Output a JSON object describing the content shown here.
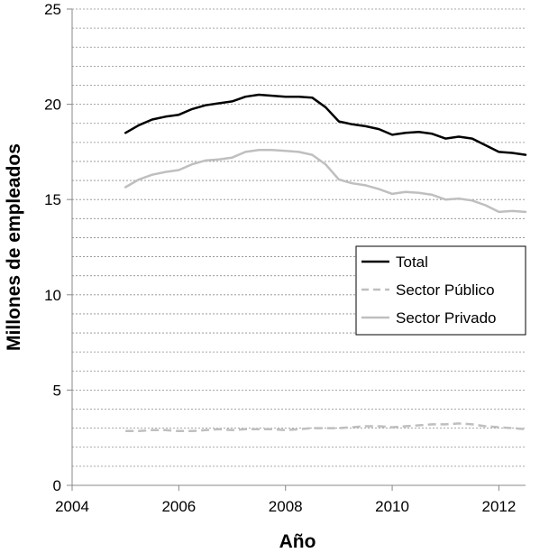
{
  "chart_data": {
    "type": "line",
    "xlabel": "Año",
    "ylabel": "Millones de empleados",
    "xlim": [
      2004,
      2012.5
    ],
    "ylim": [
      0,
      25
    ],
    "xticks": [
      2004,
      2006,
      2008,
      2010,
      2012
    ],
    "yticks": [
      0,
      5,
      10,
      15,
      20,
      25
    ],
    "xtick_labels": [
      "2004",
      "2006",
      "2008",
      "2010",
      "2012"
    ],
    "ytick_labels": [
      "0",
      "5",
      "10",
      "15",
      "20",
      "25"
    ],
    "grid": "horizontal minor dashed",
    "legend_position": "right",
    "x": [
      2005.0,
      2005.25,
      2005.5,
      2005.75,
      2006.0,
      2006.25,
      2006.5,
      2006.75,
      2007.0,
      2007.25,
      2007.5,
      2007.75,
      2008.0,
      2008.25,
      2008.5,
      2008.75,
      2009.0,
      2009.25,
      2009.5,
      2009.75,
      2010.0,
      2010.25,
      2010.5,
      2010.75,
      2011.0,
      2011.25,
      2011.5,
      2011.75,
      2012.0,
      2012.25,
      2012.5
    ],
    "series": [
      {
        "name": "Total",
        "color": "#000000",
        "style": "solid",
        "values": [
          18.5,
          18.9,
          19.2,
          19.35,
          19.45,
          19.75,
          19.95,
          20.05,
          20.15,
          20.4,
          20.5,
          20.45,
          20.4,
          20.4,
          20.35,
          19.85,
          19.1,
          18.95,
          18.85,
          18.7,
          18.4,
          18.5,
          18.55,
          18.45,
          18.2,
          18.3,
          18.2,
          17.85,
          17.5,
          17.45,
          17.35
        ]
      },
      {
        "name": "Sector Público",
        "color": "#bfbfbf",
        "style": "dashed",
        "values": [
          2.85,
          2.85,
          2.9,
          2.9,
          2.85,
          2.85,
          2.9,
          2.95,
          2.9,
          2.95,
          2.95,
          2.95,
          2.9,
          2.95,
          3.0,
          3.0,
          3.0,
          3.05,
          3.1,
          3.1,
          3.05,
          3.1,
          3.15,
          3.2,
          3.2,
          3.25,
          3.2,
          3.1,
          3.05,
          3.0,
          2.95
        ]
      },
      {
        "name": "Sector Privado",
        "color": "#bfbfbf",
        "style": "solid",
        "values": [
          15.65,
          16.05,
          16.3,
          16.45,
          16.55,
          16.85,
          17.05,
          17.1,
          17.2,
          17.5,
          17.6,
          17.6,
          17.55,
          17.5,
          17.35,
          16.85,
          16.05,
          15.85,
          15.75,
          15.55,
          15.3,
          15.4,
          15.35,
          15.25,
          15.0,
          15.05,
          14.95,
          14.7,
          14.35,
          14.4,
          14.35
        ]
      }
    ]
  }
}
